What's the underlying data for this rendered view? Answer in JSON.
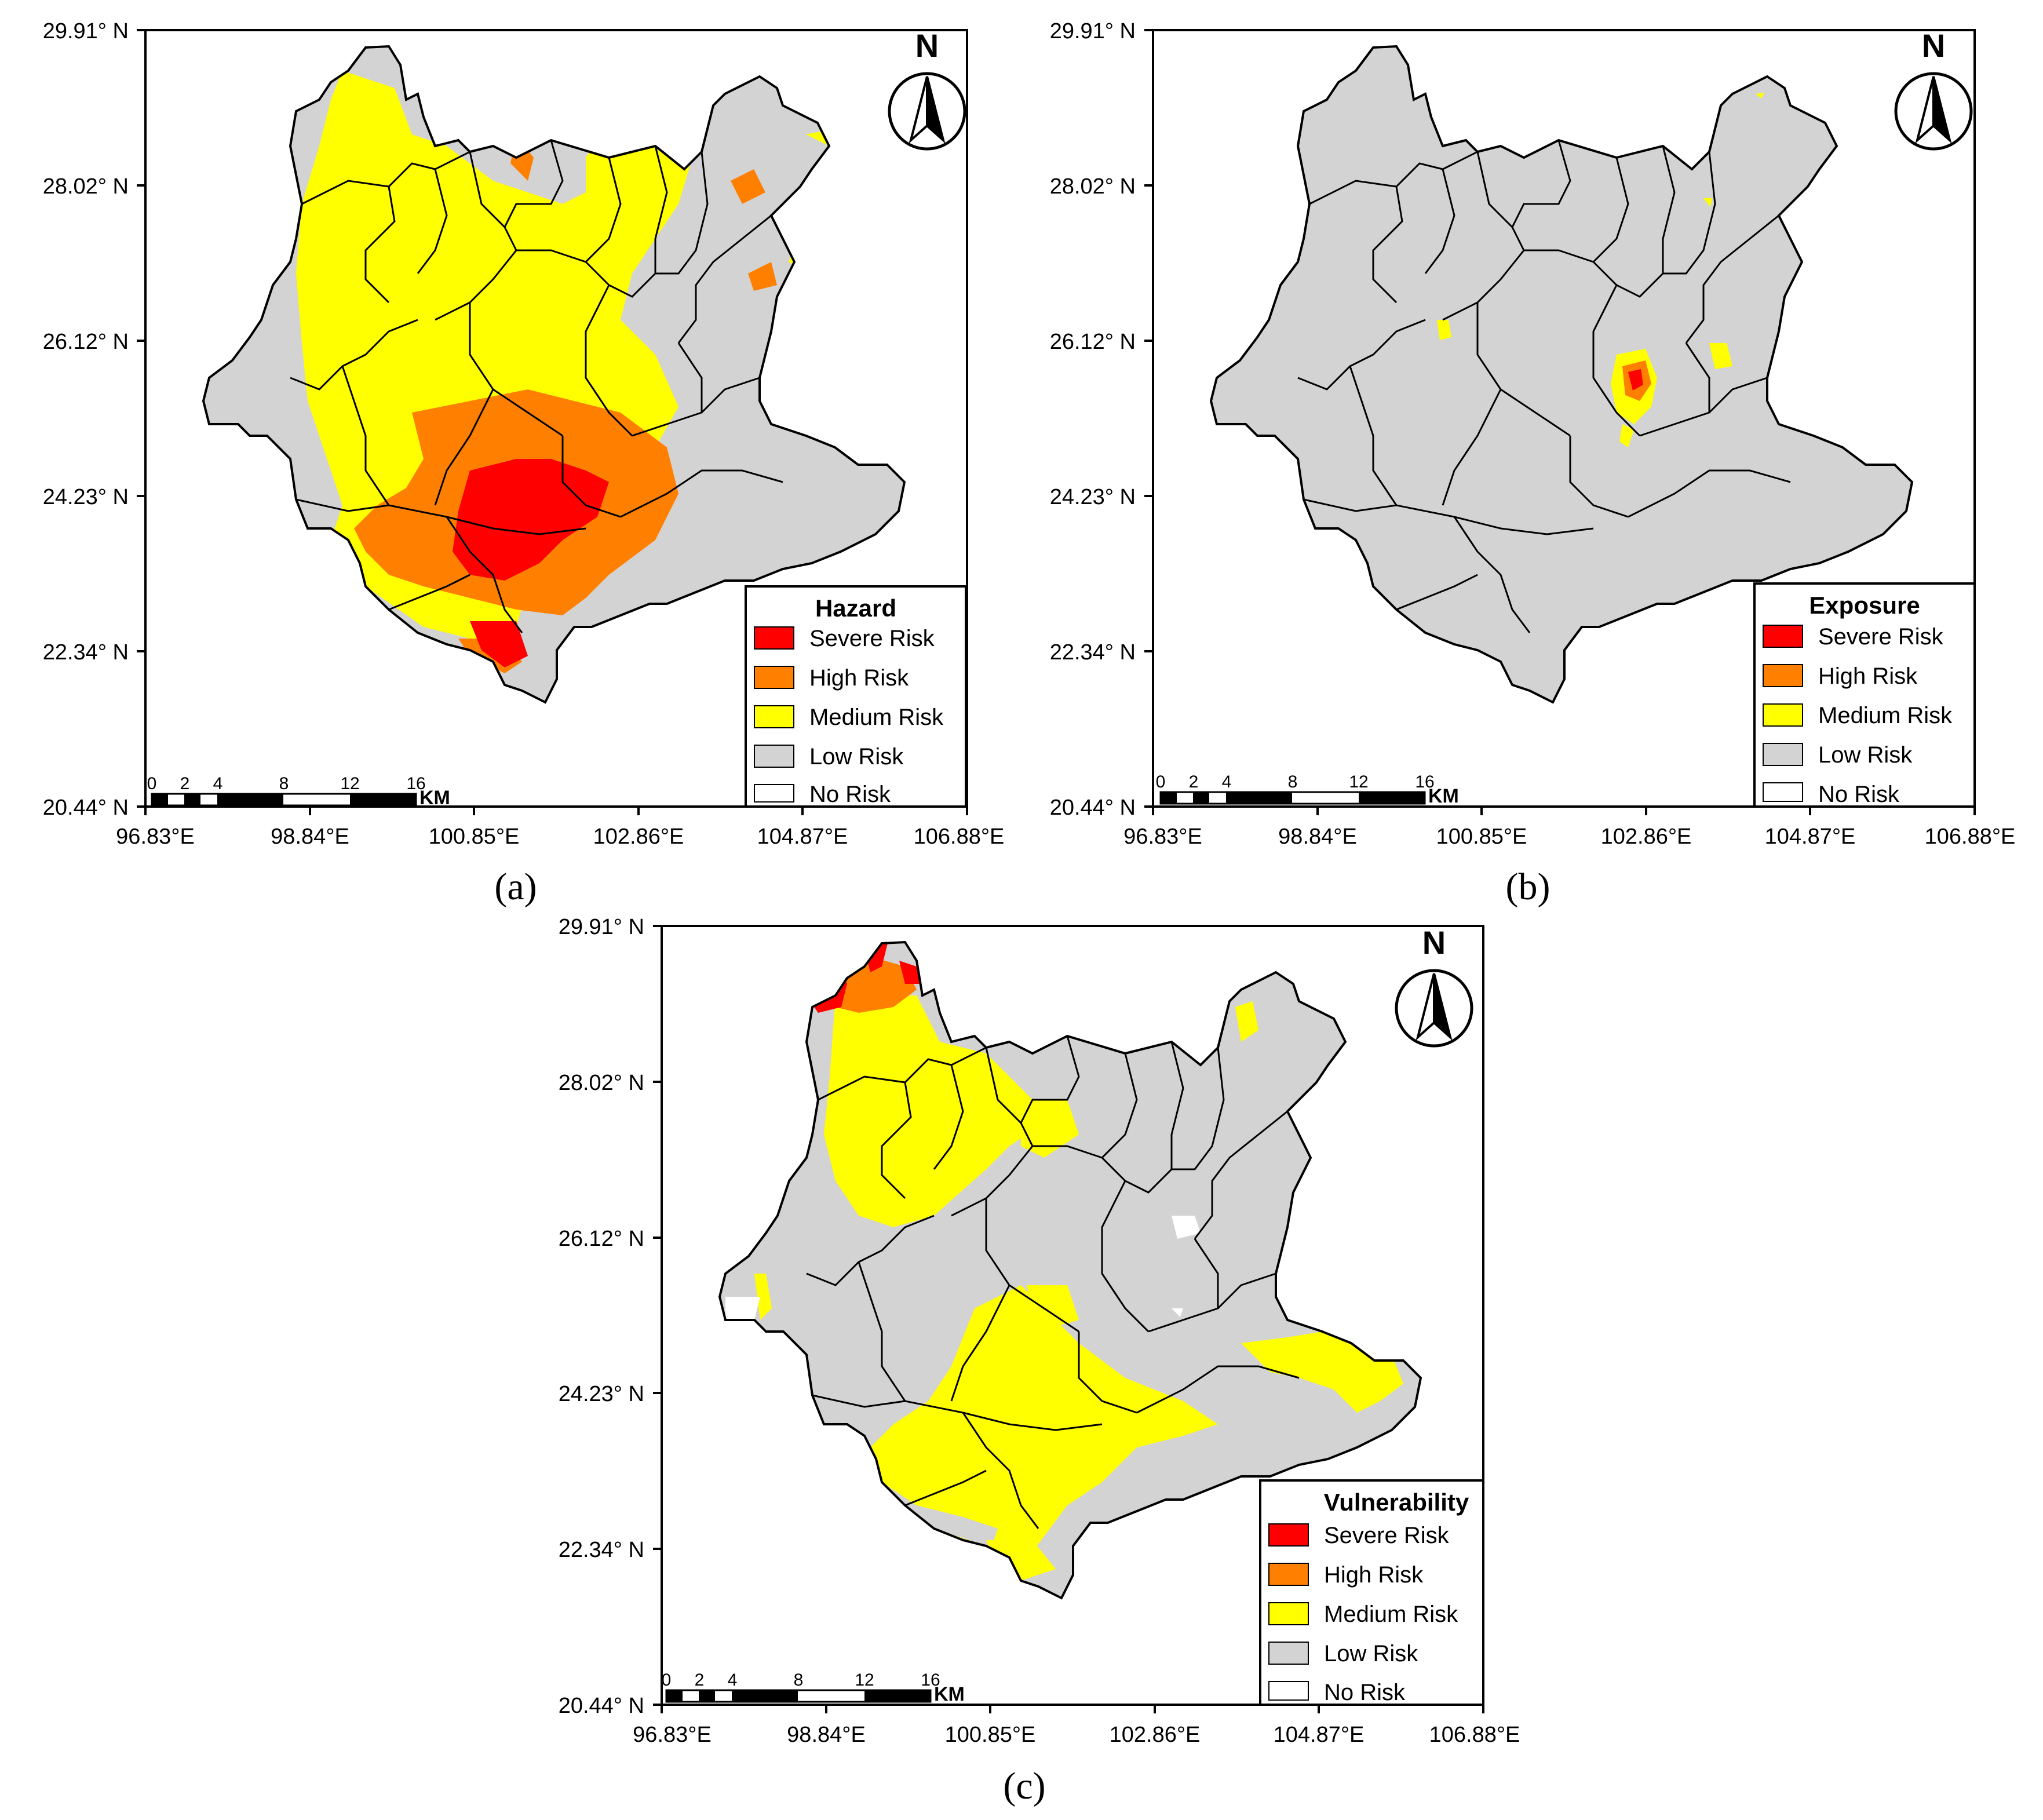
{
  "colors": {
    "severe": "#ff0000",
    "high": "#ff8000",
    "medium": "#ffff00",
    "low": "#d3d3d3",
    "none": "#ffffff",
    "border": "#000000"
  },
  "axes": {
    "lat_ticks": [
      "29.91° N",
      "28.02° N",
      "26.12° N",
      "24.23° N",
      "22.34° N",
      "20.44° N"
    ],
    "lon_ticks": [
      "96.83°E",
      "98.84°E",
      "100.85°E",
      "102.86°E",
      "104.87°E",
      "106.88°E"
    ]
  },
  "scale_bar": {
    "ticks": [
      "0",
      "2",
      "4",
      "8",
      "12",
      "16"
    ],
    "unit": "KM"
  },
  "north_arrow": {
    "label": "N",
    "icon": "north-arrow-icon"
  },
  "panels": [
    {
      "caption": "(a)",
      "legend": {
        "title": "Hazard",
        "items": [
          "Severe Risk",
          "High Risk",
          "Medium Risk",
          "Low Risk",
          "No Risk"
        ]
      }
    },
    {
      "caption": "(b)",
      "legend": {
        "title": "Exposure",
        "items": [
          "Severe Risk",
          "High Risk",
          "Medium Risk",
          "Low Risk",
          "No Risk"
        ]
      }
    },
    {
      "caption": "(c)",
      "legend": {
        "title": "Vulnerability",
        "items": [
          "Severe Risk",
          "High Risk",
          "Medium Risk",
          "Low Risk",
          "No Risk"
        ]
      }
    }
  ]
}
